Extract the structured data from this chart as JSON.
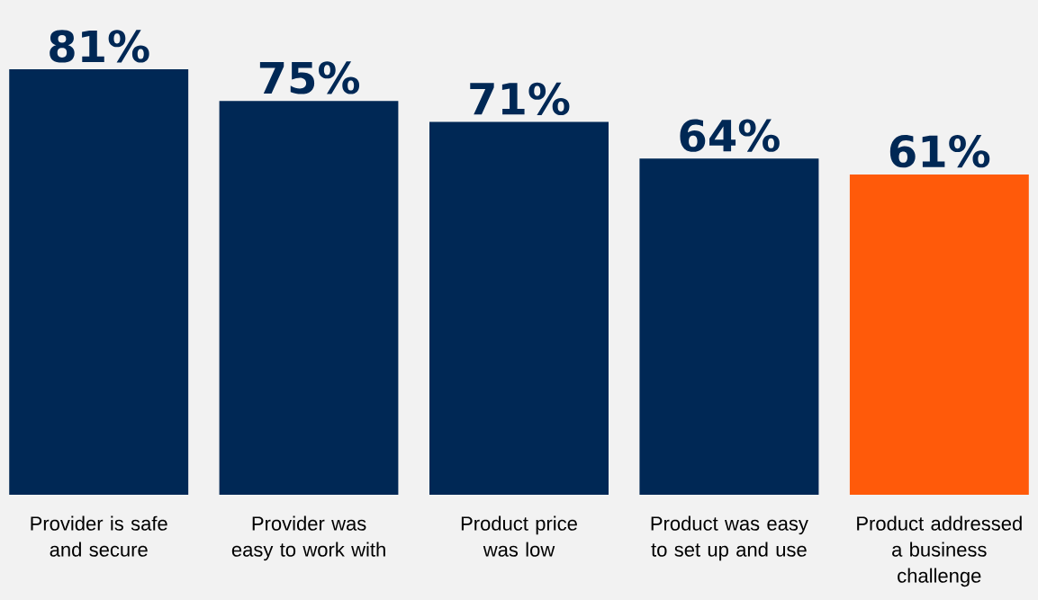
{
  "chart_data": {
    "type": "bar",
    "categories": [
      "Provider is safe and secure",
      "Provider was easy to work with",
      "Product price was low",
      "Product was easy to set up and use",
      "Product addressed a business challenge"
    ],
    "values": [
      81,
      75,
      71,
      64,
      61
    ],
    "value_labels": [
      "81%",
      "75%",
      "71%",
      "64%",
      "61%"
    ],
    "colors": [
      "#002855",
      "#002855",
      "#002855",
      "#002855",
      "#ff5a0a"
    ]
  }
}
